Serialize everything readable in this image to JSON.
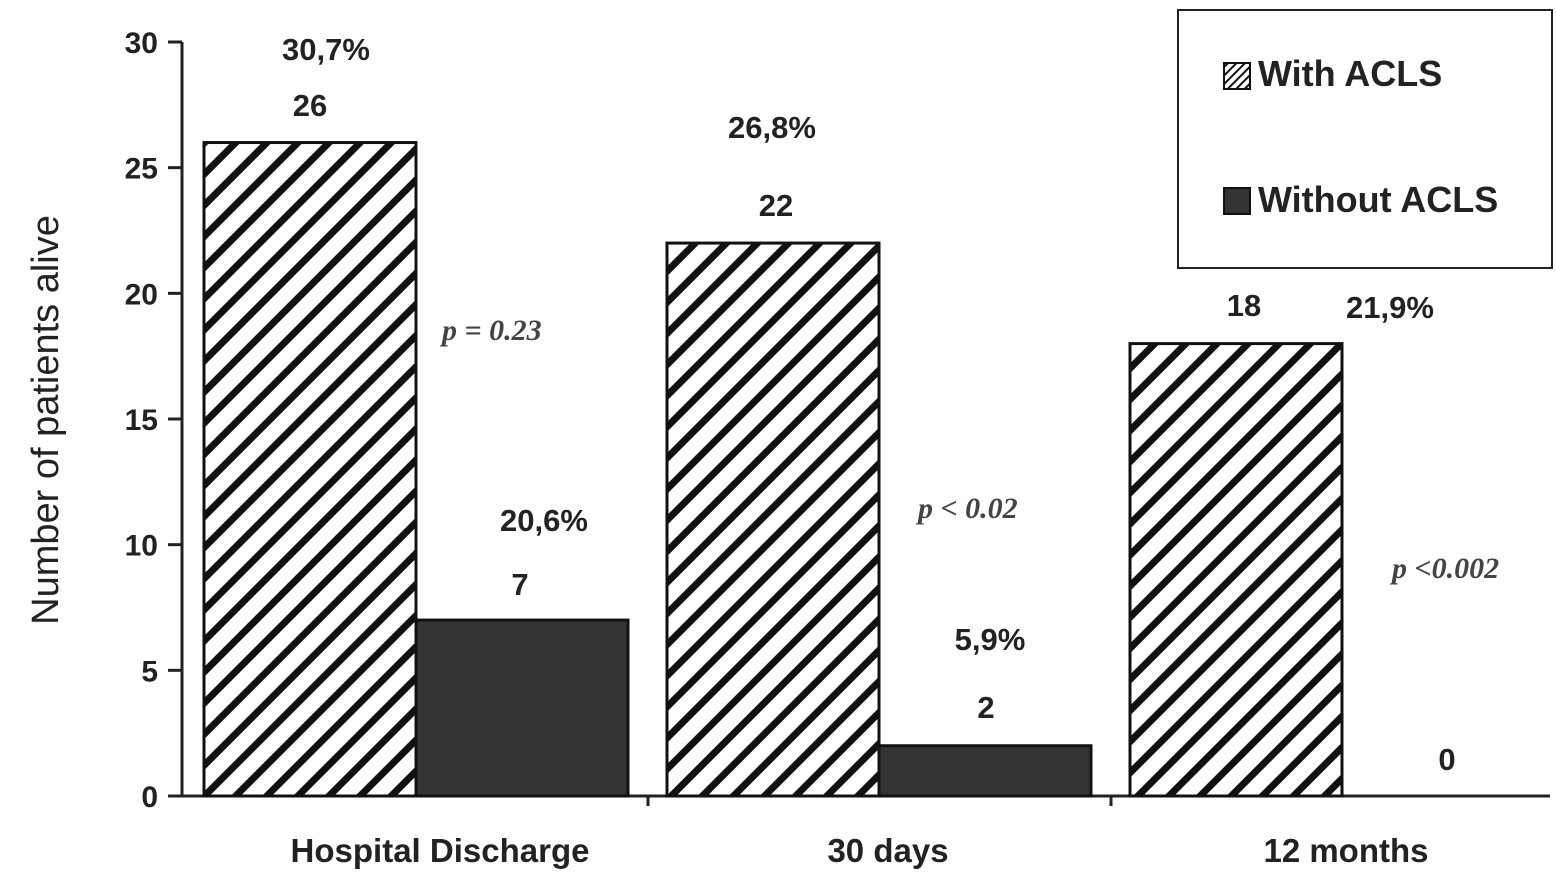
{
  "colors": {
    "with_acls_stroke": "#111111",
    "with_acls_fill": "#ffffff",
    "without_acls_fill": "#333333",
    "axis": "#222222"
  },
  "chart_data": {
    "type": "bar",
    "ylabel": "Number of patients alive",
    "ylim": [
      0,
      30
    ],
    "yticks": [
      0,
      5,
      10,
      15,
      20,
      25,
      30
    ],
    "categories": [
      "Hospital Discharge",
      "30 days",
      "12 months"
    ],
    "series": [
      {
        "name": "With ACLS",
        "pattern": "diagonal-hatch",
        "values": [
          26,
          22,
          18
        ],
        "value_labels": [
          "26",
          "22",
          "18"
        ],
        "percent_labels": [
          "30,7%",
          "26,8%",
          "21,9%"
        ]
      },
      {
        "name": "Without ACLS",
        "pattern": "solid-dark",
        "values": [
          7,
          2,
          0
        ],
        "value_labels": [
          "7",
          "2",
          "0"
        ],
        "percent_labels": [
          "20,6%",
          "5,9%",
          ""
        ]
      }
    ],
    "annotations": [
      "p = 0.23",
      "p < 0.02",
      "p <0.002"
    ],
    "legend_placement": "top-right",
    "grid": false
  }
}
